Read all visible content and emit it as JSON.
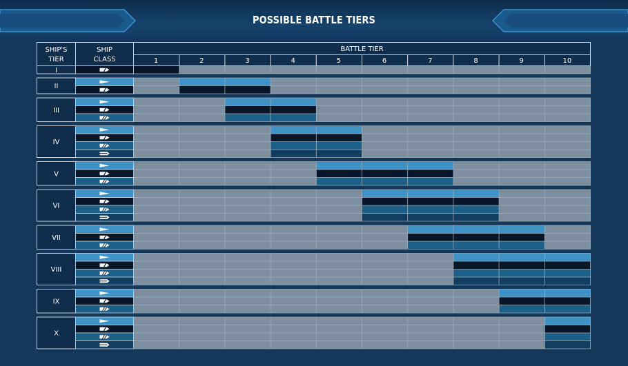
{
  "page": {
    "title": "POSSIBLE BATTLE TIERS"
  },
  "table_header": {
    "ships_tier": [
      "SHIP'S",
      "TIER"
    ],
    "ship_class": [
      "SHIP",
      "CLASS"
    ],
    "battle_tier": "BATTLE TIER"
  },
  "colors": {
    "background": "#13385a",
    "cell": "#7d8e9f",
    "grid_line": "#9cabb9",
    "header_fill": "#0f2e4e",
    "destroyer": "#3e92c5",
    "cruiser": "#08162a",
    "battleship": "#1d5f87",
    "carrier": "#123f61"
  },
  "icons": {
    "destroyer": "destroyer-class-icon",
    "cruiser": "cruiser-class-icon",
    "battleship": "battleship-class-icon",
    "carrier": "aircraft-carrier-class-icon"
  },
  "chart_data": {
    "type": "table",
    "title": "POSSIBLE BATTLE TIERS",
    "battle_tiers": [
      "1",
      "2",
      "3",
      "4",
      "5",
      "6",
      "7",
      "8",
      "9",
      "10"
    ],
    "ship_tiers": [
      {
        "tier": "I",
        "rows": [
          {
            "class": "cruiser",
            "range": [
              1,
              1
            ]
          }
        ]
      },
      {
        "tier": "II",
        "rows": [
          {
            "class": "destroyer",
            "range": [
              2,
              3
            ]
          },
          {
            "class": "cruiser",
            "range": [
              2,
              3
            ]
          }
        ]
      },
      {
        "tier": "III",
        "rows": [
          {
            "class": "destroyer",
            "range": [
              3,
              4
            ]
          },
          {
            "class": "cruiser",
            "range": [
              3,
              4
            ]
          },
          {
            "class": "battleship",
            "range": [
              3,
              4
            ]
          }
        ]
      },
      {
        "tier": "IV",
        "rows": [
          {
            "class": "destroyer",
            "range": [
              4,
              5
            ]
          },
          {
            "class": "cruiser",
            "range": [
              4,
              5
            ]
          },
          {
            "class": "battleship",
            "range": [
              4,
              5
            ]
          },
          {
            "class": "carrier",
            "range": [
              4,
              5
            ]
          }
        ]
      },
      {
        "tier": "V",
        "rows": [
          {
            "class": "destroyer",
            "range": [
              5,
              7
            ]
          },
          {
            "class": "cruiser",
            "range": [
              5,
              7
            ]
          },
          {
            "class": "battleship",
            "range": [
              5,
              7
            ]
          }
        ]
      },
      {
        "tier": "VI",
        "rows": [
          {
            "class": "destroyer",
            "range": [
              6,
              8
            ]
          },
          {
            "class": "cruiser",
            "range": [
              6,
              8
            ]
          },
          {
            "class": "battleship",
            "range": [
              6,
              8
            ]
          },
          {
            "class": "carrier",
            "range": [
              6,
              8
            ]
          }
        ]
      },
      {
        "tier": "VII",
        "rows": [
          {
            "class": "destroyer",
            "range": [
              7,
              9
            ]
          },
          {
            "class": "cruiser",
            "range": [
              7,
              9
            ]
          },
          {
            "class": "battleship",
            "range": [
              7,
              9
            ]
          }
        ]
      },
      {
        "tier": "VIII",
        "rows": [
          {
            "class": "destroyer",
            "range": [
              8,
              10
            ]
          },
          {
            "class": "cruiser",
            "range": [
              8,
              10
            ]
          },
          {
            "class": "battleship",
            "range": [
              8,
              10
            ]
          },
          {
            "class": "carrier",
            "range": [
              8,
              10
            ]
          }
        ]
      },
      {
        "tier": "IX",
        "rows": [
          {
            "class": "destroyer",
            "range": [
              9,
              10
            ]
          },
          {
            "class": "cruiser",
            "range": [
              9,
              10
            ]
          },
          {
            "class": "battleship",
            "range": [
              9,
              10
            ]
          }
        ]
      },
      {
        "tier": "X",
        "rows": [
          {
            "class": "destroyer",
            "range": [
              10,
              10
            ]
          },
          {
            "class": "cruiser",
            "range": [
              10,
              10
            ]
          },
          {
            "class": "battleship",
            "range": [
              10,
              10
            ]
          },
          {
            "class": "carrier",
            "range": [
              10,
              10
            ]
          }
        ]
      }
    ]
  }
}
